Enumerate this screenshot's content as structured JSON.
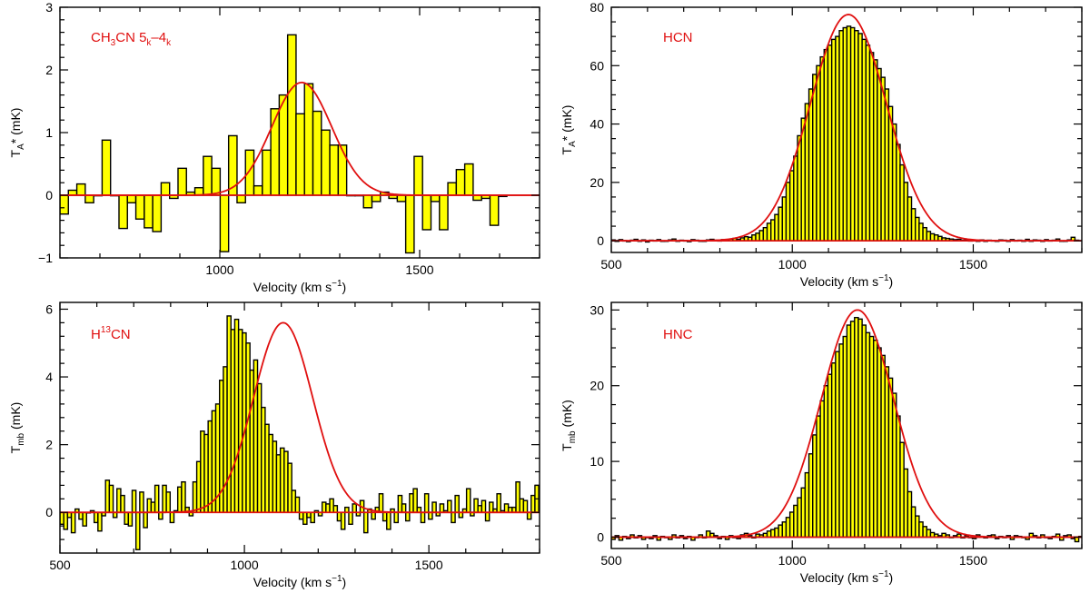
{
  "figure": {
    "bar_fill": "#ffff00",
    "bar_stroke": "#000000",
    "fit_color": "#e01010",
    "baseline_color": "#e01010"
  },
  "chart_data": [
    {
      "id": "tl",
      "type": "bar",
      "title": "CH3CN 5k-4k",
      "label_parts": [
        {
          "t": "CH"
        },
        {
          "t": "3",
          "sub": true
        },
        {
          "t": "CN 5"
        },
        {
          "t": "k",
          "sub": true
        },
        {
          "t": "–4"
        },
        {
          "t": "k",
          "sub": true
        }
      ],
      "xlabel": "Velocity (km s−1)",
      "xlabel_main": "Velocity (km s",
      "xlabel_sup": "−1",
      "xlabel_close": ")",
      "ylabel_main": "T",
      "ylabel_sub": "A",
      "ylabel_tail": "* (mK)",
      "xlim": [
        600,
        1800
      ],
      "ylim": [
        -1,
        3
      ],
      "xticks": [
        1000,
        1500
      ],
      "yticks": [
        -1,
        0,
        1,
        2,
        3
      ],
      "bin": 21.1,
      "x0": 600,
      "values": [
        -0.3,
        0.08,
        0.18,
        -0.12,
        0.0,
        0.88,
        0.0,
        -0.53,
        -0.12,
        -0.38,
        -0.52,
        -0.58,
        0.2,
        -0.05,
        0.43,
        0.05,
        0.12,
        0.62,
        0.43,
        -0.9,
        0.95,
        -0.12,
        0.72,
        0.15,
        0.72,
        1.38,
        1.6,
        2.56,
        1.3,
        1.78,
        1.34,
        1.04,
        0.8,
        0.8,
        0.0,
        0.0,
        -0.2,
        -0.1,
        0.05,
        -0.05,
        -0.1,
        -0.92,
        0.62,
        -0.55,
        -0.1,
        -0.55,
        0.2,
        0.41,
        0.5,
        -0.08,
        -0.05,
        -0.48,
        -0.02
      ],
      "fit": {
        "amp": 1.8,
        "center": 1205,
        "sigma": 75
      }
    },
    {
      "id": "tr",
      "type": "bar",
      "title": "HCN",
      "label_parts": [
        {
          "t": "HCN"
        }
      ],
      "xlabel": "Velocity (km s−1)",
      "xlabel_main": "Velocity (km s",
      "xlabel_sup": "−1",
      "xlabel_close": ")",
      "ylabel_main": "T",
      "ylabel_sub": "A",
      "ylabel_tail": "* (mK)",
      "xlim": [
        500,
        1800
      ],
      "ylim": [
        -4,
        80
      ],
      "xticks": [
        500,
        1000,
        1500
      ],
      "yticks": [
        0,
        20,
        40,
        60,
        80
      ],
      "bin": 10.5,
      "x0": 500,
      "values": "hcn",
      "fit": {
        "amp": 77.5,
        "center": 1155,
        "sigma": 105
      }
    },
    {
      "id": "bl",
      "type": "bar",
      "title": "H13CN",
      "label_parts": [
        {
          "t": "H"
        },
        {
          "t": "13",
          "sup": true
        },
        {
          "t": "CN"
        }
      ],
      "xlabel": "Velocity (km s−1)",
      "xlabel_main": "Velocity (km s",
      "xlabel_sup": "−1",
      "xlabel_close": ")",
      "ylabel_main": "T",
      "ylabel_sub": "mb",
      "ylabel_tail": " (mK)",
      "xlim": [
        500,
        1800
      ],
      "ylim": [
        -1.2,
        6.2
      ],
      "xticks": [
        500,
        1000,
        1500
      ],
      "yticks": [
        0,
        2,
        4,
        6
      ],
      "bin": 10.3,
      "x0": 500,
      "values": "h13cn",
      "fit": {
        "amp": 5.6,
        "center": 1105,
        "sigma": 80
      }
    },
    {
      "id": "br",
      "type": "bar",
      "title": "HNC",
      "label_parts": [
        {
          "t": "HNC"
        }
      ],
      "xlabel": "Velocity (km s−1)",
      "xlabel_main": "Velocity (km s",
      "xlabel_sup": "−1",
      "xlabel_close": ")",
      "ylabel_main": "T",
      "ylabel_sub": "mb",
      "ylabel_tail": " (mK)",
      "xlim": [
        500,
        1800
      ],
      "ylim": [
        -1.5,
        31
      ],
      "xticks": [
        500,
        1000,
        1500
      ],
      "yticks": [
        0,
        10,
        20,
        30
      ],
      "bin": 10.5,
      "x0": 500,
      "values": "hnc",
      "fit": {
        "amp": 30,
        "center": 1180,
        "sigma": 100
      }
    }
  ],
  "series_values": {
    "hcn": [
      0.3,
      -0.2,
      0.4,
      0.1,
      -0.3,
      0.2,
      0.5,
      -0.1,
      0.3,
      -0.4,
      0.2,
      0.1,
      0.4,
      -0.2,
      0.0,
      0.3,
      0.6,
      -0.1,
      0.2,
      0.1,
      -0.3,
      0.4,
      0.2,
      0.0,
      -0.2,
      0.3,
      0.5,
      0.2,
      0.1,
      0.4,
      0.3,
      0.6,
      0.8,
      0.5,
      1.0,
      1.4,
      1.2,
      2.0,
      2.6,
      3.5,
      4.5,
      6.0,
      7.2,
      9.0,
      11.5,
      15.0,
      20.0,
      24.0,
      29.0,
      36.0,
      42.0,
      47.0,
      52.0,
      57.0,
      60.0,
      63.0,
      65.5,
      67.0,
      69.0,
      70.0,
      72.0,
      73.0,
      73.5,
      73.0,
      72.0,
      71.0,
      69.0,
      67.0,
      64.5,
      62.0,
      59.0,
      56.0,
      52.0,
      46.0,
      40.0,
      33.0,
      26.0,
      20.0,
      15.0,
      11.0,
      8.0,
      6.0,
      4.5,
      3.2,
      2.4,
      2.0,
      1.5,
      1.0,
      0.8,
      0.6,
      0.4,
      0.5,
      0.2,
      0.3,
      0.1,
      0.2,
      0.0,
      0.3,
      -0.2,
      0.2,
      0.1,
      -0.1,
      0.3,
      0.2,
      -0.2,
      0.4,
      0.1,
      0.2,
      0.0,
      0.5,
      -0.1,
      0.3,
      0.2,
      -0.2,
      0.4,
      0.1,
      0.2,
      0.6,
      0.0,
      -0.1,
      0.3,
      1.2,
      0.2
    ],
    "h13cn": [
      -0.35,
      -0.5,
      -0.15,
      -0.6,
      0.1,
      -0.2,
      -0.4,
      0.0,
      0.05,
      -0.3,
      -0.55,
      -0.1,
      0.95,
      0.8,
      -0.15,
      0.7,
      0.5,
      -0.35,
      -0.4,
      0.65,
      -1.1,
      0.6,
      -0.45,
      0.4,
      0.3,
      0.8,
      -0.2,
      0.8,
      0.6,
      -0.3,
      0.05,
      0.75,
      0.9,
      0.15,
      -0.1,
      0.9,
      1.5,
      2.4,
      2.3,
      2.7,
      3.0,
      3.2,
      3.9,
      4.3,
      5.8,
      5.4,
      5.7,
      5.4,
      5.3,
      5.0,
      4.2,
      4.5,
      3.8,
      3.1,
      2.6,
      2.3,
      2.1,
      1.7,
      1.9,
      1.8,
      1.45,
      0.65,
      0.45,
      -0.2,
      -0.35,
      -0.15,
      -0.3,
      0.05,
      -0.1,
      0.3,
      0.25,
      0.4,
      0.2,
      -0.25,
      -0.5,
      0.15,
      -0.35,
      0.25,
      -0.1,
      0.35,
      -0.6,
      0.1,
      -0.2,
      0.15,
      0.55,
      -0.25,
      -0.5,
      0.1,
      -0.3,
      0.5,
      0.25,
      -0.25,
      0.55,
      0.7,
      0.15,
      -0.3,
      0.55,
      -0.2,
      0.3,
      -0.1,
      0.25,
      0.05,
      0.35,
      -0.3,
      0.5,
      -0.15,
      0.1,
      0.7,
      -0.1,
      0.4,
      0.2,
      0.35,
      -0.25,
      0.3,
      0.1,
      0.55,
      0.05,
      0.25,
      0.15,
      0.15,
      0.9,
      0.4,
      0.35,
      -0.2,
      0.5,
      0.8
    ],
    "hnc": [
      -0.3,
      0.2,
      -0.4,
      0.1,
      -0.2,
      0.3,
      -0.1,
      0.2,
      -0.3,
      0.0,
      -0.2,
      0.2,
      -0.4,
      0.1,
      0.0,
      -0.3,
      0.3,
      -0.1,
      0.2,
      -0.2,
      0.1,
      -0.4,
      0.0,
      0.3,
      -0.1,
      0.8,
      0.5,
      0.2,
      -0.2,
      0.1,
      -0.3,
      0.2,
      0.0,
      -0.2,
      0.3,
      0.5,
      0.2,
      -0.1,
      0.4,
      0.3,
      0.5,
      0.8,
      1.0,
      1.2,
      1.6,
      2.0,
      2.6,
      3.3,
      4.2,
      5.2,
      6.5,
      8.5,
      11.0,
      13.5,
      16.0,
      18.0,
      20.0,
      21.5,
      23.0,
      24.5,
      25.5,
      26.5,
      28.0,
      28.5,
      29.0,
      28.8,
      28.0,
      27.0,
      26.5,
      26.0,
      25.0,
      24.0,
      22.5,
      21.0,
      19.0,
      16.0,
      12.5,
      9.0,
      6.0,
      4.0,
      2.8,
      2.0,
      1.4,
      1.0,
      0.6,
      0.4,
      0.2,
      0.5,
      0.3,
      0.0,
      0.2,
      0.4,
      -0.1,
      0.2,
      0.0,
      -0.2,
      0.3,
      0.1,
      -0.1,
      0.2,
      0.3,
      -0.2,
      0.1,
      0.0,
      0.2,
      -0.3,
      0.2,
      0.1,
      0.0,
      -0.3,
      0.5,
      0.2,
      -0.1,
      0.3,
      0.0,
      -0.2,
      0.1,
      0.4,
      -0.4,
      0.2,
      0.3,
      -0.2,
      -0.6,
      0.1
    ]
  }
}
